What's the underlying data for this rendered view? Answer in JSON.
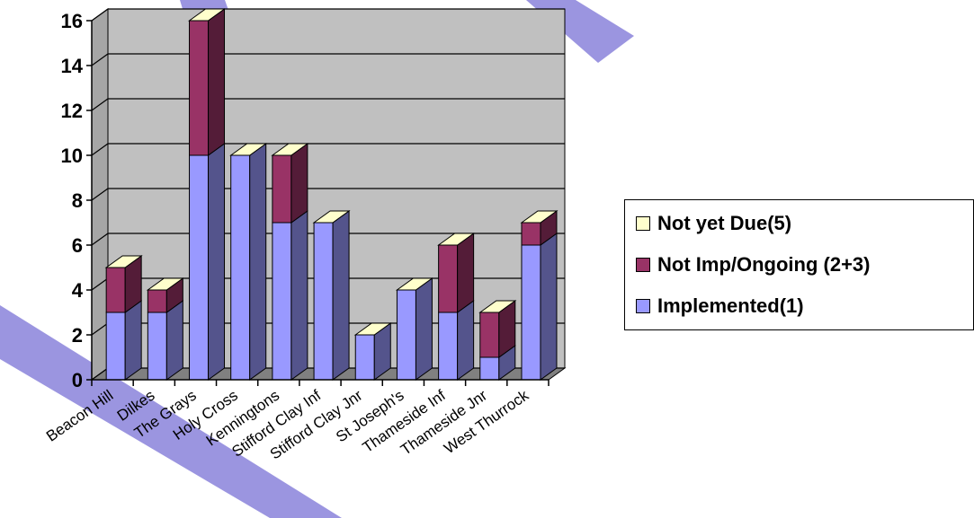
{
  "chart_data": {
    "type": "bar",
    "stacked": true,
    "three_d": true,
    "categories": [
      "Beacon Hill",
      "Dilkes",
      "The Grays",
      "Holy Cross",
      "Kenningtons",
      "Stifford Clay Inf",
      "Stifford Clay Jnr",
      "St Joseph's",
      "Thameside Inf",
      "Thameside Jnr",
      "West Thurrock"
    ],
    "series": [
      {
        "name": "Implemented(1)",
        "values": [
          3,
          3,
          10,
          10,
          7,
          7,
          2,
          4,
          3,
          1,
          6
        ],
        "color": "#9999ff"
      },
      {
        "name": "Not Imp/Ongoing (2+3)",
        "values": [
          2,
          1,
          6,
          0,
          3,
          0,
          0,
          0,
          3,
          2,
          1
        ],
        "color": "#993366"
      },
      {
        "name": "Not yet Due(5)",
        "values": [
          0,
          0,
          0,
          0,
          0,
          0,
          0,
          0,
          0,
          0,
          0
        ],
        "color": "#ffffcc"
      }
    ],
    "yticks": [
      "0",
      "2",
      "4",
      "6",
      "8",
      "10",
      "12",
      "14",
      "16"
    ],
    "ylim": [
      0,
      16
    ],
    "grid": true,
    "legend_position": "right",
    "wall_color": "#c0c0c0"
  },
  "legend": [
    {
      "label": "Not yet Due(5)",
      "color": "#ffffcc"
    },
    {
      "label": "Not Imp/Ongoing (2+3)",
      "color": "#993366"
    },
    {
      "label": "Implemented(1)",
      "color": "#9999ff"
    }
  ],
  "watermark_color": "#9b95e0"
}
